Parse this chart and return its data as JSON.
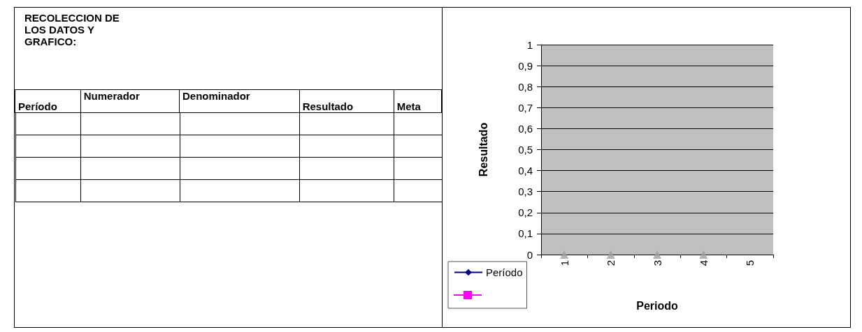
{
  "chart_data": [
    {
      "type": "other",
      "title": "RECOLECCION DE LOS DATOS Y GRAFICO:",
      "annotations": [
        "Período",
        "Numerador",
        "Denominador",
        "Resultado",
        "Meta"
      ]
    },
    {
      "type": "line",
      "xlabel": "Periodo",
      "ylabel": "Resultado",
      "categories": [
        "1",
        "2",
        "3",
        "4",
        "5"
      ],
      "series": [
        {
          "name": "Período",
          "color": "#000080",
          "marker": "diamond",
          "values": [
            null,
            null,
            null,
            null,
            null
          ]
        },
        {
          "color": "#ff00ff",
          "marker": "square",
          "values": [
            null,
            null,
            null,
            null,
            null
          ]
        },
        {
          "type": "scatter",
          "color": "#a0a0a0",
          "marker": "triangle",
          "values": [
            0,
            0,
            0,
            0,
            null
          ]
        }
      ],
      "ylim": [
        0,
        1
      ],
      "yticks": [
        0,
        {
          "value": 0.1,
          "label": "0,1"
        },
        {
          "value": 0.2,
          "label": "0,2"
        },
        {
          "value": 0.3,
          "label": "0,3"
        },
        {
          "value": 0.4,
          "label": "0,4"
        },
        {
          "value": 0.5,
          "label": "0,5"
        },
        {
          "value": 0.6,
          "label": "0,6"
        },
        {
          "value": 0.7,
          "label": "0,7"
        },
        {
          "value": 0.8,
          "label": "0,8"
        },
        {
          "value": 0.9,
          "label": "0,9"
        },
        1
      ],
      "grid": "y",
      "legend": "bottom left",
      "line_style": "solid"
    }
  ]
}
